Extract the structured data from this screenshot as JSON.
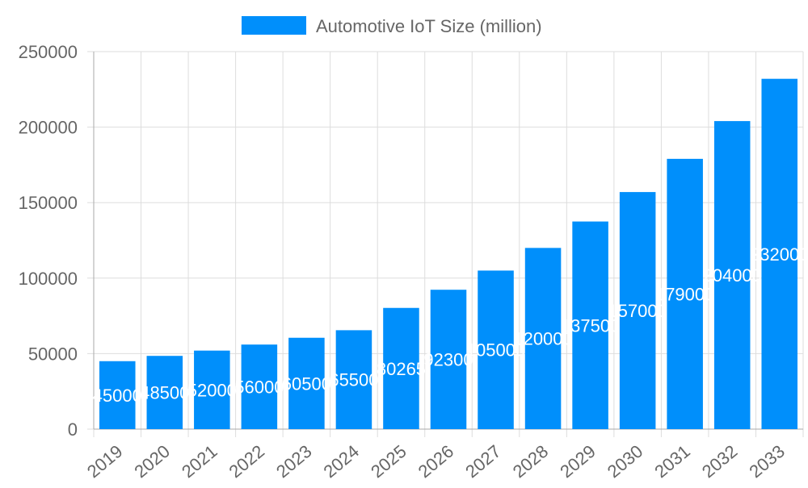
{
  "chart_data": {
    "type": "bar",
    "categories": [
      "2019",
      "2020",
      "2021",
      "2022",
      "2023",
      "2024",
      "2025",
      "2026",
      "2027",
      "2028",
      "2029",
      "2030",
      "2031",
      "2032",
      "2033"
    ],
    "series": [
      {
        "name": "Automotive IoT Size (million)",
        "values": [
          45000,
          48500,
          52000,
          56000,
          60500,
          65500,
          80265,
          92300,
          105000,
          120000,
          137500,
          157000,
          179000,
          204000,
          232000
        ],
        "color": "#008ffb"
      }
    ],
    "ylim": [
      0,
      250000
    ],
    "yticks": [
      0,
      50000,
      100000,
      150000,
      200000,
      250000
    ],
    "grid": true,
    "legend": "top",
    "data_labels": true
  }
}
